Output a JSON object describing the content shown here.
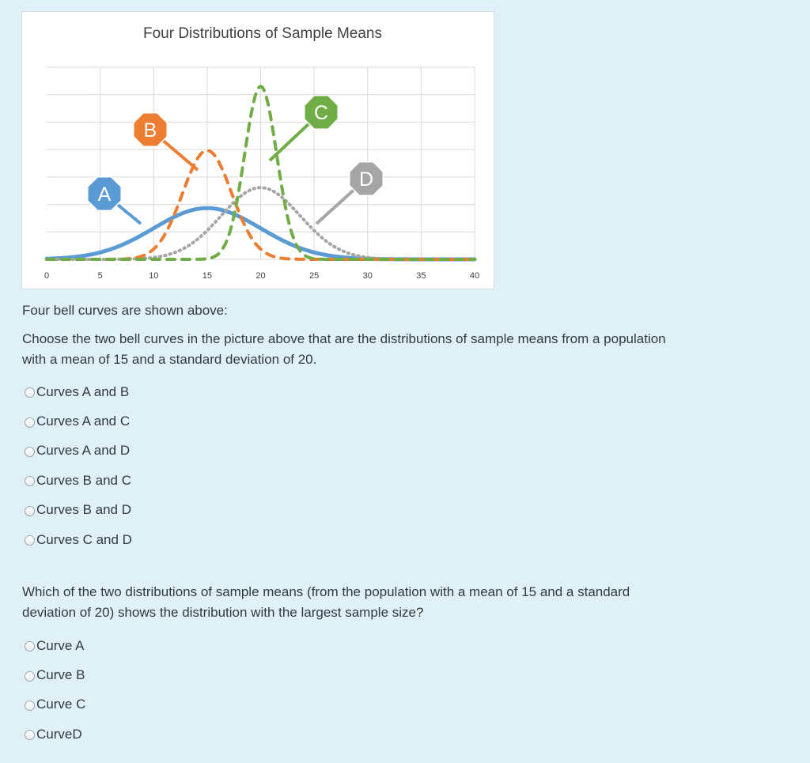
{
  "chart_data": {
    "type": "line",
    "title": "Four Distributions of Sample Means",
    "xlabel": "",
    "ylabel": "",
    "xlim": [
      0,
      40
    ],
    "x_ticks": [
      "0",
      "5",
      "10",
      "15",
      "20",
      "25",
      "30",
      "35",
      "40"
    ],
    "grid": true,
    "series": [
      {
        "name": "A",
        "mean": 15,
        "sd": 5,
        "peak": 0.08,
        "style": "solid",
        "color": "#5b9bd5"
      },
      {
        "name": "B",
        "mean": 15,
        "sd": 2.3,
        "peak": 0.17,
        "style": "dashed",
        "color": "#ed7d31"
      },
      {
        "name": "C",
        "mean": 20,
        "sd": 1.5,
        "peak": 0.27,
        "style": "dashed",
        "color": "#70ad47"
      },
      {
        "name": "D",
        "mean": 20,
        "sd": 3.7,
        "peak": 0.112,
        "style": "dotted",
        "color": "#a5a5a5"
      }
    ]
  },
  "questions": [
    {
      "text_lines": [
        "Four bell curves are shown above:"
      ]
    },
    {
      "text_lines": [
        "Choose the two bell curves in the picture above that are the distributions of sample means from a population",
        "with a mean of 15 and a standard deviation of 20."
      ],
      "options": [
        "Curves A and B",
        "Curves A and C",
        "Curves A and D",
        "Curves B and C",
        "Curves B and D",
        "Curves C and D"
      ]
    },
    {
      "text_lines": [
        "Which of the two distributions of sample means (from the population with a mean of 15 and a standard",
        "deviation of 20) shows the distribution with the largest sample size?"
      ],
      "options": [
        "Curve A",
        "Curve B",
        "Curve C",
        "CurveD"
      ]
    }
  ]
}
